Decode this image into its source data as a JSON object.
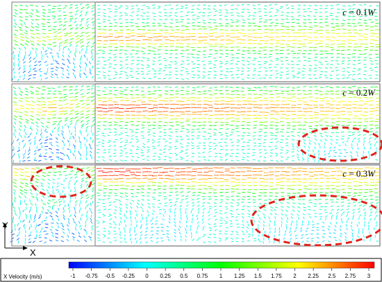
{
  "panels": [
    {
      "case_label": "c = 0.1W",
      "c_symbol": "c",
      "equals_text": " = 0.1",
      "w_symbol": "W"
    },
    {
      "case_label": "c = 0.2W",
      "c_symbol": "c",
      "equals_text": " = 0.2",
      "w_symbol": "W"
    },
    {
      "case_label": "c = 0.3W",
      "c_symbol": "c",
      "equals_text": " = 0.3",
      "w_symbol": "W"
    }
  ],
  "axes": {
    "y_label": "Y",
    "x_label": "X"
  },
  "colorbar": {
    "title": "X Velocity (m/s)",
    "ticks": [
      "-1",
      "-0.75",
      "-0.5",
      "-0.25",
      "0",
      "0.25",
      "0.5",
      "0.75",
      "1",
      "1.25",
      "1.5",
      "1.75",
      "2",
      "2.25",
      "2.5",
      "2.75",
      "3"
    ],
    "min": -1,
    "max": 3,
    "colors": [
      "#0000ff",
      "#0080ff",
      "#00ffff",
      "#00ff80",
      "#00ff00",
      "#80ff00",
      "#ffff00",
      "#ff8000",
      "#ff0000"
    ]
  },
  "annotation_color": "#e0231b"
}
